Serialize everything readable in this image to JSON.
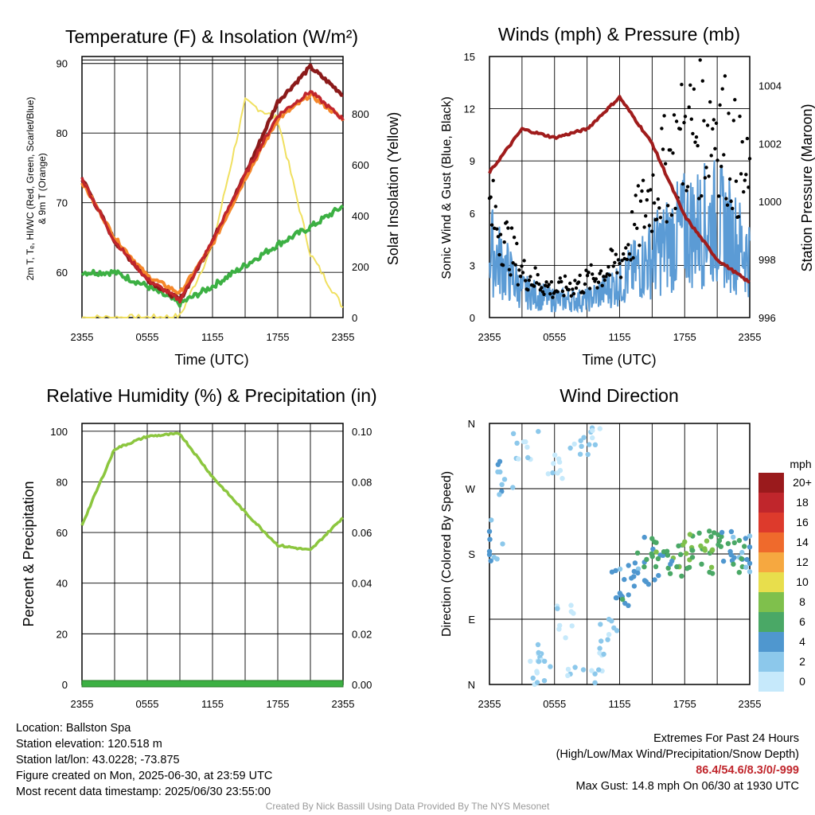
{
  "x_ticks": [
    "2355",
    "0555",
    "1155",
    "1755",
    "2355"
  ],
  "panels": {
    "temperature": {
      "title": "Temperature (F) & Insolation (W/m²)",
      "xlabel": "Time (UTC)",
      "ylabel_left": [
        "2m T, Tₑ, HI/WC (Red, Green, Scarlet/Blue)",
        "& 9m T (Orange)"
      ],
      "ylabel_right": "Solar Insolation (Yellow)",
      "yticks_left": [
        "60",
        "70",
        "80",
        "90"
      ],
      "yticks_right": [
        "0",
        "200",
        "400",
        "600",
        "800"
      ]
    },
    "winds": {
      "title": "Winds (mph) & Pressure (mb)",
      "xlabel": "Time (UTC)",
      "ylabel_left": "Sonic Wind & Gust (Blue, Black)",
      "ylabel_right": "Station Pressure (Maroon)",
      "yticks_left": [
        "0",
        "3",
        "6",
        "9",
        "12",
        "15"
      ],
      "yticks_right": [
        "996",
        "998",
        "1000",
        "1002",
        "1004"
      ]
    },
    "humidity": {
      "title": "Relative Humidity (%) & Precipitation (in)",
      "ylabel_left": "Percent & Precipitation",
      "yticks_left": [
        "0",
        "20",
        "40",
        "60",
        "80",
        "100"
      ],
      "yticks_right": [
        "0.00",
        "0.02",
        "0.04",
        "0.06",
        "0.08",
        "0.10"
      ]
    },
    "direction": {
      "title": "Wind Direction",
      "ylabel_left": "Direction (Colored By Speed)",
      "yticks_left": [
        "N",
        "E",
        "S",
        "W",
        "N"
      ],
      "colorbar": {
        "unit": "mph",
        "labels": [
          "0",
          "2",
          "4",
          "6",
          "8",
          "10",
          "12",
          "14",
          "16",
          "18",
          "20+"
        ],
        "colors": [
          "#c6e9fb",
          "#8cc8eb",
          "#4f97cf",
          "#4aa866",
          "#7fc04c",
          "#e8de4c",
          "#f6a840",
          "#ef6a2c",
          "#dd3a2c",
          "#c0262c",
          "#9a1a1c"
        ]
      }
    }
  },
  "chart_data": [
    {
      "type": "line",
      "title": "Temperature (F) & Insolation (W/m²)",
      "xlabel": "Time (UTC)",
      "x": [
        "2355",
        "0255",
        "0555",
        "0855",
        "1155",
        "1455",
        "1755",
        "2055",
        "2355"
      ],
      "ylim": [
        53.5,
        91
      ],
      "y2lim": [
        0,
        1000
      ],
      "series": [
        {
          "name": "2m T",
          "color": "#c0262c",
          "values": [
            73.5,
            64.5,
            59,
            56,
            64.5,
            74,
            82.5,
            86,
            82
          ]
        },
        {
          "name": "Td",
          "color": "#3cb043",
          "values": [
            60,
            60,
            58,
            55.5,
            58,
            61,
            64,
            66.5,
            69.5
          ]
        },
        {
          "name": "HI/WC",
          "color": "#8b1a1a",
          "values": [
            73.5,
            64.5,
            59,
            56,
            64.5,
            74,
            84.5,
            89.5,
            85.5
          ]
        },
        {
          "name": "9m T",
          "color": "#f5872a",
          "values": [
            73,
            65,
            59.5,
            57,
            64,
            73.5,
            82,
            85.5,
            82
          ]
        },
        {
          "name": "Solar Insolation",
          "axis": "right",
          "color": "#f0e060",
          "values": [
            0,
            0,
            0,
            5,
            280,
            850,
            780,
            250,
            40
          ]
        }
      ]
    },
    {
      "type": "line",
      "title": "Winds (mph) & Pressure (mb)",
      "xlabel": "Time (UTC)",
      "x": [
        "2355",
        "0255",
        "0555",
        "0855",
        "1155",
        "1455",
        "1755",
        "2055",
        "2355"
      ],
      "ylim": [
        0,
        15
      ],
      "y2lim": [
        996,
        1005
      ],
      "series": [
        {
          "name": "Sonic Wind",
          "color": "#5b9bd5",
          "values": [
            4,
            1.5,
            1,
            1,
            2,
            3.5,
            5,
            5.5,
            3.5
          ]
        },
        {
          "name": "Gust",
          "color": "#000000",
          "values": [
            6,
            2.5,
            1.5,
            2,
            3,
            7,
            10,
            11,
            7
          ]
        },
        {
          "name": "Station Pressure",
          "axis": "right",
          "color": "#a01c1c",
          "values": [
            1001,
            1002.5,
            1002.2,
            1002.5,
            1003.6,
            1002,
            999.5,
            998,
            997.2
          ]
        }
      ]
    },
    {
      "type": "line",
      "title": "Relative Humidity (%) & Precipitation (in)",
      "x": [
        "2355",
        "0255",
        "0555",
        "0855",
        "1155",
        "1455",
        "1755",
        "2055",
        "2355"
      ],
      "ylim": [
        0,
        100
      ],
      "y2lim": [
        0,
        0.1
      ],
      "series": [
        {
          "name": "Relative Humidity",
          "color": "#8cc63f",
          "values": [
            63,
            93,
            98,
            99,
            82,
            68,
            55,
            53,
            66
          ]
        },
        {
          "name": "Precipitation",
          "axis": "right",
          "color": "#3cb043",
          "values": [
            0,
            0,
            0,
            0,
            0,
            0,
            0,
            0,
            0
          ]
        }
      ]
    },
    {
      "type": "scatter",
      "title": "Wind Direction",
      "x": [
        "2355",
        "0555",
        "1155",
        "1755",
        "2355"
      ],
      "ylim": [
        0,
        360
      ],
      "points": [
        {
          "t": 0.5,
          "dir": 200,
          "spd": 3
        },
        {
          "t": 1.5,
          "dir": 280,
          "spd": 3
        },
        {
          "t": 3,
          "dir": 340,
          "spd": 1
        },
        {
          "t": 4,
          "dir": 30,
          "spd": 1
        },
        {
          "t": 5,
          "dir": 15,
          "spd": 1
        },
        {
          "t": 6,
          "dir": 300,
          "spd": 0
        },
        {
          "t": 7,
          "dir": 80,
          "spd": 0
        },
        {
          "t": 8,
          "dir": 355,
          "spd": 1
        },
        {
          "t": 9,
          "dir": 340,
          "spd": 2
        },
        {
          "t": 10,
          "dir": 20,
          "spd": 1
        },
        {
          "t": 11,
          "dir": 60,
          "spd": 2
        },
        {
          "t": 12,
          "dir": 130,
          "spd": 3
        },
        {
          "t": 13,
          "dir": 140,
          "spd": 4
        },
        {
          "t": 14,
          "dir": 160,
          "spd": 4
        },
        {
          "t": 15,
          "dir": 175,
          "spd": 5
        },
        {
          "t": 16,
          "dir": 170,
          "spd": 6
        },
        {
          "t": 17,
          "dir": 165,
          "spd": 6
        },
        {
          "t": 18,
          "dir": 175,
          "spd": 7
        },
        {
          "t": 19,
          "dir": 180,
          "spd": 7
        },
        {
          "t": 20,
          "dir": 185,
          "spd": 7
        },
        {
          "t": 21,
          "dir": 182,
          "spd": 6
        },
        {
          "t": 22,
          "dir": 185,
          "spd": 5
        },
        {
          "t": 23,
          "dir": 180,
          "spd": 4
        },
        {
          "t": 24,
          "dir": 182,
          "spd": 4
        }
      ]
    }
  ],
  "footer": {
    "location": "Location: Ballston Spa",
    "elevation": "Station elevation: 120.518 m",
    "latlon": "Station lat/lon: 43.0228; -73.875",
    "created": "Figure created on Mon, 2025-06-30, at 23:59 UTC",
    "recent": "Most recent data timestamp: 2025/06/30 23:55:00",
    "extremes_title": "Extremes For Past 24 Hours",
    "extremes_subtitle": "(High/Low/Max Wind/Precipitation/Snow Depth)",
    "extremes_values": "86.4/54.6/8.3/0/-999",
    "max_gust": "Max Gust: 14.8 mph On 06/30 at 1930 UTC",
    "credit": "Created By Nick Bassill Using Data Provided By The NYS Mesonet"
  }
}
